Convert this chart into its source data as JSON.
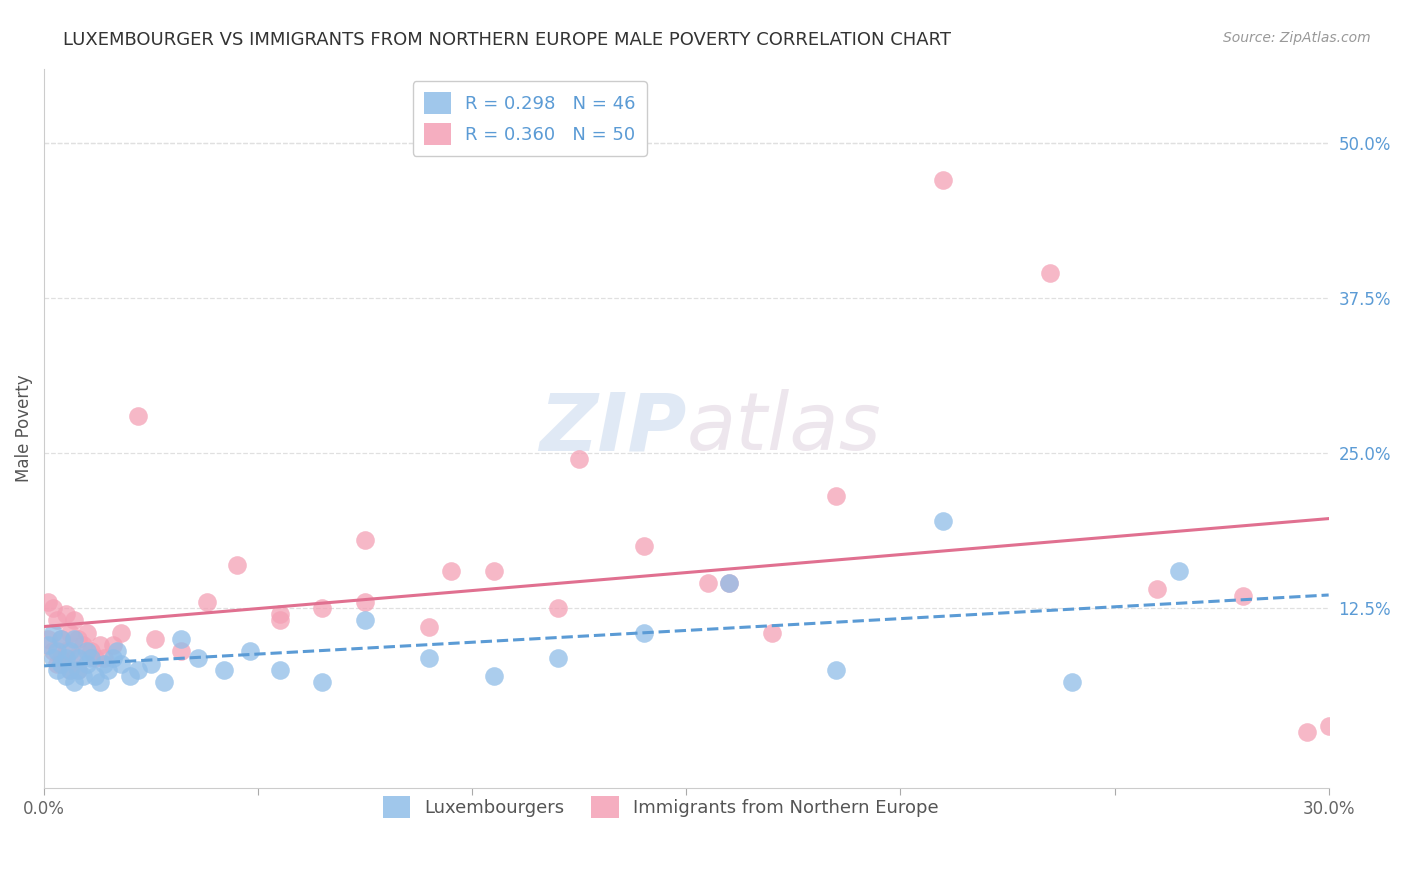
{
  "title": "LUXEMBOURGER VS IMMIGRANTS FROM NORTHERN EUROPE MALE POVERTY CORRELATION CHART",
  "source": "Source: ZipAtlas.com",
  "ylabel": "Male Poverty",
  "xlim": [
    0.0,
    0.3
  ],
  "ylim": [
    -0.02,
    0.56
  ],
  "ytick_positions": [
    0.0,
    0.125,
    0.25,
    0.375,
    0.5
  ],
  "ytick_labels_right": [
    "",
    "12.5%",
    "25.0%",
    "37.5%",
    "50.0%"
  ],
  "grid_color": "#e0e0e0",
  "background_color": "#ffffff",
  "series1_color": "#8fbde8",
  "series2_color": "#f4a0b5",
  "series1_line_color": "#5b9bd5",
  "series2_line_color": "#e07090",
  "series1_label": "Luxembourgers",
  "series2_label": "Immigrants from Northern Europe",
  "series1_R": "0.298",
  "series1_N": "46",
  "series2_R": "0.360",
  "series2_N": "50",
  "title_fontsize": 13,
  "axis_label_fontsize": 12,
  "tick_label_fontsize": 12,
  "legend_fontsize": 13,
  "right_tick_color": "#5b9bd5",
  "watermark_part1": "ZIP",
  "watermark_part2": "atlas",
  "series1_x": [
    0.001,
    0.002,
    0.002,
    0.003,
    0.003,
    0.004,
    0.004,
    0.005,
    0.005,
    0.006,
    0.006,
    0.007,
    0.007,
    0.008,
    0.008,
    0.009,
    0.01,
    0.01,
    0.011,
    0.012,
    0.013,
    0.014,
    0.015,
    0.016,
    0.017,
    0.018,
    0.02,
    0.022,
    0.025,
    0.028,
    0.032,
    0.036,
    0.042,
    0.048,
    0.055,
    0.065,
    0.075,
    0.09,
    0.105,
    0.12,
    0.14,
    0.16,
    0.185,
    0.21,
    0.24,
    0.265
  ],
  "series1_y": [
    0.095,
    0.105,
    0.085,
    0.09,
    0.075,
    0.1,
    0.08,
    0.085,
    0.07,
    0.09,
    0.075,
    0.1,
    0.065,
    0.085,
    0.075,
    0.07,
    0.09,
    0.08,
    0.085,
    0.07,
    0.065,
    0.08,
    0.075,
    0.085,
    0.09,
    0.08,
    0.07,
    0.075,
    0.08,
    0.065,
    0.1,
    0.085,
    0.075,
    0.09,
    0.075,
    0.065,
    0.115,
    0.085,
    0.07,
    0.085,
    0.105,
    0.145,
    0.075,
    0.195,
    0.065,
    0.155
  ],
  "series2_x": [
    0.001,
    0.001,
    0.002,
    0.002,
    0.003,
    0.003,
    0.004,
    0.004,
    0.005,
    0.005,
    0.006,
    0.006,
    0.007,
    0.007,
    0.008,
    0.008,
    0.009,
    0.01,
    0.011,
    0.012,
    0.013,
    0.014,
    0.016,
    0.018,
    0.022,
    0.026,
    0.032,
    0.038,
    0.045,
    0.055,
    0.065,
    0.075,
    0.09,
    0.105,
    0.12,
    0.14,
    0.16,
    0.185,
    0.21,
    0.235,
    0.26,
    0.28,
    0.295,
    0.3,
    0.17,
    0.125,
    0.095,
    0.075,
    0.055,
    0.155
  ],
  "series2_y": [
    0.13,
    0.1,
    0.125,
    0.09,
    0.115,
    0.08,
    0.1,
    0.085,
    0.12,
    0.09,
    0.105,
    0.075,
    0.115,
    0.085,
    0.1,
    0.075,
    0.095,
    0.105,
    0.09,
    0.085,
    0.095,
    0.085,
    0.095,
    0.105,
    0.28,
    0.1,
    0.09,
    0.13,
    0.16,
    0.12,
    0.125,
    0.18,
    0.11,
    0.155,
    0.125,
    0.175,
    0.145,
    0.215,
    0.47,
    0.395,
    0.14,
    0.135,
    0.025,
    0.03,
    0.105,
    0.245,
    0.155,
    0.13,
    0.115,
    0.145
  ]
}
